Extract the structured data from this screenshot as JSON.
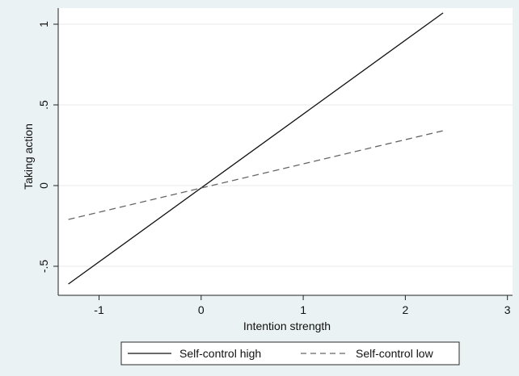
{
  "chart_data": {
    "type": "line",
    "title": "",
    "xlabel": "Intention strength",
    "ylabel": "Taking action",
    "xlim": [
      -1.4,
      3.05
    ],
    "ylim": [
      -0.68,
      1.1
    ],
    "x_ticks": [
      {
        "value": -1,
        "label": "-1"
      },
      {
        "value": 0,
        "label": "0"
      },
      {
        "value": 1,
        "label": "1"
      },
      {
        "value": 2,
        "label": "2"
      },
      {
        "value": 3,
        "label": "3"
      }
    ],
    "y_ticks": [
      {
        "value": -0.5,
        "label": "-.5"
      },
      {
        "value": 0,
        "label": "0"
      },
      {
        "value": 0.5,
        "label": ".5"
      },
      {
        "value": 1,
        "label": "1"
      }
    ],
    "grid": "horizontal",
    "legend_position": "bottom",
    "series": [
      {
        "name": "Self-control high",
        "style": "solid",
        "color": "#111111",
        "x": [
          -1.3,
          2.37
        ],
        "y": [
          -0.61,
          1.07
        ]
      },
      {
        "name": "Self-control low",
        "style": "dashed",
        "color": "#666666",
        "x": [
          -1.3,
          2.37
        ],
        "y": [
          -0.21,
          0.34
        ]
      }
    ]
  },
  "colors": {
    "outer_background": "#eaf2f3",
    "plot_background": "#ffffff",
    "gridline": "#e9eef0"
  }
}
